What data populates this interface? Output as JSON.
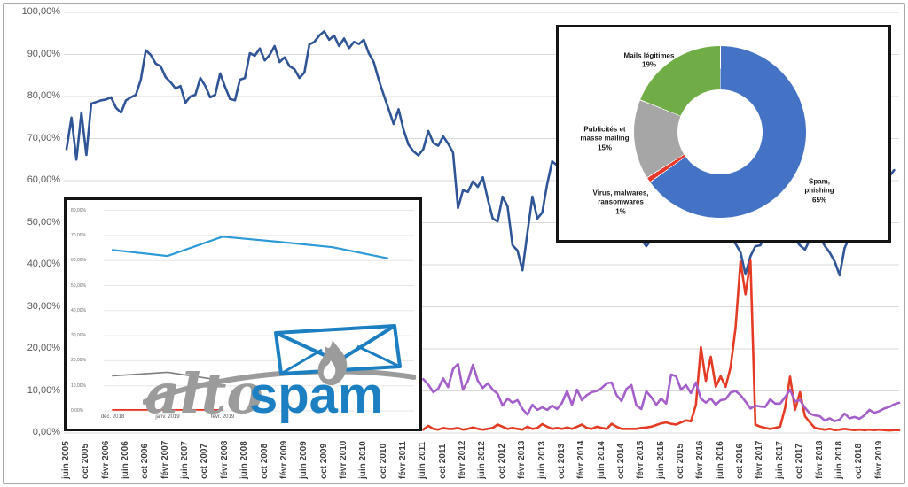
{
  "colors": {
    "main_blue": "#2f5597",
    "main_red": "#e43b24",
    "main_purple": "#a45fc9",
    "mini_blue": "#2e9ad6",
    "mini_gray": "#7f7f7f",
    "donut_blue": "#4472c4",
    "donut_red": "#e8392b",
    "donut_gray": "#a6a6a6",
    "donut_green": "#70ad47",
    "gridline": "#d9d9d9",
    "logo_blue": "#1b7fc2",
    "logo_gray": "#9b9b9b"
  },
  "logo": {
    "alto": "alto",
    "spam": "spam"
  },
  "chart_data": [
    {
      "id": "main-evolution-chart",
      "type": "line",
      "title": "",
      "x_start": "juin 2005",
      "x_end": "juin 2019",
      "x_step": "monthly",
      "grid": true,
      "ylim": [
        0,
        100
      ],
      "y_tick_labels": [
        "100,00%",
        "90,00%",
        "80,00%",
        "70,00%",
        "60,00%",
        "50,00%",
        "40,00%",
        "30,00%",
        "20,00%",
        "10,00%",
        "0,00%"
      ],
      "x_tick_labels": [
        "juin 2005",
        "oct 2005",
        "févr 2006",
        "juin 2006",
        "oct 2006",
        "févr 2007",
        "juin 2007",
        "oct 2007",
        "févr 2008",
        "juin 2008",
        "oct 2008",
        "févr 2009",
        "juin 2009",
        "oct 2009",
        "févr 2010",
        "juin 2010",
        "oct 2010",
        "févr 2011",
        "juin 2011",
        "oct 2011",
        "févr 2012",
        "juin 2012",
        "oct 2012",
        "févr 2013",
        "juin 2013",
        "oct 2013",
        "févr 2014",
        "juin 2014",
        "oct 2014",
        "févr 2015",
        "juin 2015",
        "oct 2015",
        "févr 2016",
        "juin 2016",
        "oct 2016",
        "févr 2017",
        "juin 2017",
        "oct 2017",
        "févr 2018",
        "juin 2018",
        "oct 2018",
        "févr 2019"
      ],
      "series": [
        {
          "name": "spam",
          "color": "#2f5597",
          "values": [
            67.5,
            75.0,
            65.0,
            76.2,
            66.1,
            78.3,
            78.7,
            79.1,
            79.3,
            79.8,
            77.3,
            76.2,
            79.1,
            79.8,
            80.4,
            84.0,
            91.0,
            89.9,
            87.8,
            87.2,
            84.6,
            83.4,
            81.9,
            82.5,
            78.5,
            80.0,
            80.4,
            84.4,
            82.5,
            79.8,
            80.4,
            85.5,
            82.3,
            79.4,
            79.1,
            84.0,
            84.4,
            90.3,
            89.7,
            91.4,
            88.6,
            89.9,
            92.0,
            88.2,
            89.3,
            87.2,
            86.5,
            84.4,
            85.7,
            92.4,
            93.0,
            94.5,
            95.5,
            93.5,
            94.5,
            92.0,
            93.8,
            91.5,
            93.0,
            92.5,
            93.5,
            90.3,
            88.2,
            84.0,
            80.4,
            77.0,
            73.5,
            77.0,
            72.1,
            68.6,
            67.0,
            66.0,
            67.5,
            71.8,
            69.0,
            68.3,
            70.5,
            68.8,
            66.7,
            53.5,
            57.7,
            57.3,
            59.8,
            58.5,
            60.8,
            55.6,
            51.0,
            50.3,
            56.2,
            53.9,
            44.6,
            43.4,
            38.7,
            47.6,
            56.2,
            51.0,
            52.4,
            59.2,
            64.6,
            63.6,
            56.6,
            54.0,
            52.0,
            50.0,
            49.0,
            50.0,
            51.0,
            49.0,
            48.0,
            47.0,
            48.0,
            49.0,
            48.0,
            47.0,
            46.5,
            46.2,
            46.0,
            44.4,
            46.0,
            47.0,
            48.0,
            49.0,
            50.0,
            51.0,
            50.0,
            49.0,
            48.0,
            47.0,
            46.5,
            46.2,
            46.5,
            47.0,
            48.0,
            46.0,
            46.0,
            45.0,
            43.0,
            37.7,
            42.0,
            44.4,
            44.6,
            47.0,
            48.0,
            49.0,
            48.0,
            47.0,
            46.5,
            46.0,
            44.6,
            43.6,
            46.0,
            47.0,
            46.5,
            44.5,
            42.9,
            40.8,
            37.5,
            44.0,
            46.5,
            48.0,
            50.0,
            52.0,
            54.0,
            56.0,
            58.0,
            60.0,
            61.0,
            62.5,
            null
          ]
        },
        {
          "name": "virus-malwares",
          "color": "#e43b24",
          "values": [
            null,
            null,
            null,
            null,
            null,
            null,
            null,
            null,
            null,
            null,
            null,
            null,
            null,
            null,
            null,
            null,
            null,
            null,
            null,
            null,
            null,
            null,
            null,
            null,
            null,
            null,
            null,
            null,
            null,
            null,
            null,
            null,
            null,
            null,
            null,
            null,
            null,
            null,
            null,
            null,
            null,
            null,
            null,
            null,
            null,
            null,
            null,
            null,
            null,
            null,
            null,
            null,
            null,
            null,
            null,
            null,
            null,
            null,
            null,
            null,
            null,
            null,
            null,
            null,
            null,
            null,
            null,
            null,
            null,
            null,
            null,
            null,
            0.8,
            1.7,
            1.0,
            0.8,
            1.2,
            1.0,
            1.0,
            1.2,
            0.8,
            1.0,
            1.3,
            1.0,
            0.8,
            1.0,
            1.2,
            2.0,
            1.5,
            1.0,
            1.2,
            1.0,
            0.8,
            1.5,
            1.0,
            1.2,
            2.1,
            1.5,
            1.0,
            1.2,
            1.0,
            1.3,
            1.0,
            1.5,
            2.0,
            1.2,
            1.0,
            1.5,
            1.2,
            1.0,
            2.2,
            1.5,
            1.0,
            1.0,
            1.0,
            1.0,
            1.2,
            1.3,
            1.5,
            1.9,
            2.3,
            2.5,
            2.2,
            2.0,
            2.5,
            3.0,
            2.8,
            6.7,
            20.4,
            12.4,
            18.1,
            11.0,
            13.5,
            11.0,
            15.6,
            25.0,
            40.8,
            33.0,
            41.0,
            2.0,
            1.5,
            1.2,
            1.0,
            1.2,
            1.5,
            6.0,
            13.4,
            5.5,
            9.7,
            4.0,
            2.5,
            1.2,
            1.0,
            0.8,
            1.0,
            0.7,
            0.8,
            1.0,
            0.8,
            0.7,
            0.8,
            0.7,
            0.8,
            0.7,
            0.8,
            0.7,
            0.6,
            0.7,
            0.7
          ]
        },
        {
          "name": "publicites-masse-mailing",
          "color": "#a45fc9",
          "values": [
            null,
            null,
            null,
            null,
            null,
            null,
            null,
            null,
            null,
            null,
            null,
            null,
            null,
            null,
            null,
            null,
            null,
            null,
            null,
            null,
            null,
            null,
            null,
            null,
            null,
            null,
            null,
            null,
            null,
            null,
            null,
            null,
            null,
            null,
            null,
            null,
            null,
            null,
            null,
            null,
            null,
            null,
            null,
            null,
            null,
            null,
            null,
            null,
            null,
            null,
            null,
            null,
            null,
            null,
            null,
            null,
            null,
            null,
            null,
            null,
            null,
            null,
            null,
            null,
            null,
            null,
            null,
            null,
            null,
            null,
            null,
            null,
            12.8,
            11.5,
            9.7,
            10.5,
            13.0,
            10.9,
            15.2,
            16.4,
            10.3,
            12.4,
            16.2,
            12.4,
            10.7,
            11.8,
            10.3,
            9.3,
            6.5,
            8.2,
            7.2,
            7.8,
            5.7,
            4.4,
            6.7,
            5.5,
            6.1,
            5.5,
            6.5,
            5.7,
            7.2,
            10.0,
            6.7,
            10.3,
            7.8,
            9.0,
            9.7,
            10.0,
            10.7,
            11.8,
            12.0,
            9.0,
            7.6,
            10.5,
            11.4,
            6.5,
            5.7,
            9.9,
            8.5,
            6.7,
            8.2,
            7.0,
            13.9,
            13.5,
            10.3,
            11.4,
            9.5,
            12.0,
            8.2,
            7.2,
            8.2,
            6.7,
            7.8,
            8.0,
            9.6,
            10.0,
            9.0,
            7.5,
            5.8,
            6.5,
            6.3,
            6.2,
            8.0,
            7.0,
            7.0,
            8.5,
            10.3,
            7.5,
            7.8,
            6.0,
            4.6,
            4.2,
            4.0,
            3.0,
            3.5,
            2.8,
            3.2,
            4.6,
            3.5,
            3.8,
            3.4,
            4.2,
            5.5,
            4.8,
            5.2,
            5.8,
            6.2,
            6.8,
            7.2
          ]
        }
      ]
    },
    {
      "id": "donut-repartition",
      "type": "pie",
      "slices": [
        {
          "name": "Spam, phishing",
          "value": 65,
          "color": "#4472c4",
          "label": "Spam,\nphishing\n65%"
        },
        {
          "name": "Virus, malwares, ransomwares",
          "value": 1,
          "color": "#e8392b",
          "label": "Virus, malwares,\nransomwares\n1%"
        },
        {
          "name": "Publicités et masse mailing",
          "value": 15,
          "color": "#a6a6a6",
          "label": "Publicités et\nmasse mailing\n15%"
        },
        {
          "name": "Mails légitimes",
          "value": 19,
          "color": "#70ad47",
          "label": "Mails légitimes\n19%"
        }
      ]
    },
    {
      "id": "mini-recent-months-chart",
      "type": "line",
      "grid": true,
      "ylim": [
        0,
        80
      ],
      "y_tick_labels": [
        "80,00%",
        "70,00%",
        "60,00%",
        "50,00%",
        "40,00%",
        "30,00%",
        "20,00%",
        "10,00%",
        "0,00%"
      ],
      "x_tick_labels": [
        "déc. 2018",
        "janv. 2019",
        "févr. 2019"
      ],
      "series": [
        {
          "name": "taux-spam",
          "color": "#2e9ad6",
          "width": 2.2,
          "values": [
            64.2,
            61.8,
            69.5,
            67.5,
            65.3,
            60.9
          ]
        },
        {
          "name": "publicites",
          "color": "#7f7f7f",
          "width": 1.6,
          "values": [
            14.0,
            15.4,
            12.1,
            null,
            null,
            null
          ]
        },
        {
          "name": "virus",
          "color": "#e8311f",
          "width": 1.8,
          "values": [
            0.4,
            0.4,
            0.4,
            null,
            null,
            null
          ]
        }
      ]
    }
  ]
}
